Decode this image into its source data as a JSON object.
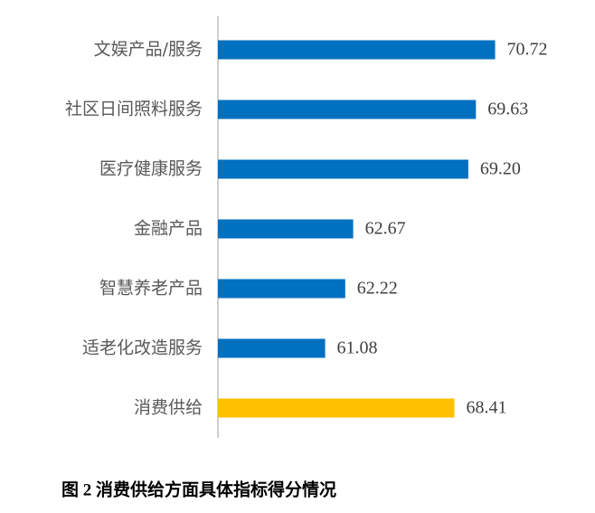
{
  "chart_data": {
    "type": "hbar",
    "title": "图 2  消费供给方面具体指标得分情况",
    "categories": [
      "文娱产品/服务",
      "社区日间照料服务",
      "医疗健康服务",
      "金融产品",
      "智慧养老产品",
      "适老化改造服务",
      "消费供给"
    ],
    "values": [
      70.72,
      69.63,
      69.2,
      62.67,
      62.22,
      61.08,
      68.41
    ],
    "value_labels": [
      "70.72",
      "69.63",
      "69.20",
      "62.67",
      "62.22",
      "61.08",
      "68.41"
    ],
    "colors": [
      "#0070c0",
      "#0070c0",
      "#0070c0",
      "#0070c0",
      "#0070c0",
      "#0070c0",
      "#ffc000"
    ],
    "xlim": [
      55,
      75
    ]
  }
}
